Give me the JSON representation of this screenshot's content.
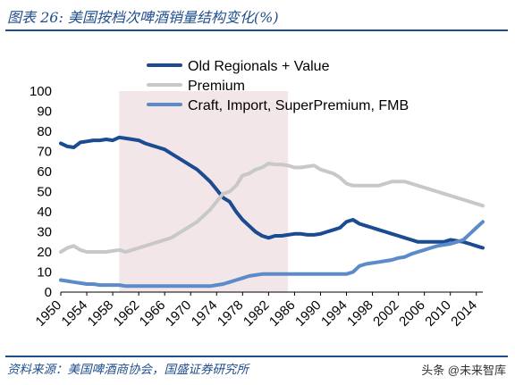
{
  "header": {
    "title": "图表 26: 美国按档次啤酒销量结构变化(%)"
  },
  "footer": {
    "source": "资料来源：美国啤酒商协会，国盛证券研究所",
    "watermark": "头条 @未来智库"
  },
  "chart_data": {
    "type": "line",
    "title": "图表 26: 美国按档次啤酒销量结构变化(%)",
    "xlabel": "",
    "ylabel": "",
    "ylim": [
      0,
      100
    ],
    "xlim": [
      1950,
      2015
    ],
    "grid": false,
    "legend_position": "top-center",
    "yticks": [
      0,
      10,
      20,
      30,
      40,
      50,
      60,
      70,
      80,
      90,
      100
    ],
    "xticks": [
      1950,
      1954,
      1958,
      1962,
      1966,
      1970,
      1974,
      1978,
      1982,
      1986,
      1990,
      1994,
      1998,
      2002,
      2006,
      2010,
      2014
    ],
    "shaded_region": {
      "from": 1959,
      "to": 1985,
      "color": "#f2e6e8"
    },
    "x": [
      1950,
      1951,
      1952,
      1953,
      1954,
      1955,
      1956,
      1957,
      1958,
      1959,
      1960,
      1961,
      1962,
      1963,
      1964,
      1965,
      1966,
      1967,
      1968,
      1969,
      1970,
      1971,
      1972,
      1973,
      1974,
      1975,
      1976,
      1977,
      1978,
      1979,
      1980,
      1981,
      1982,
      1983,
      1984,
      1985,
      1986,
      1987,
      1988,
      1989,
      1990,
      1991,
      1992,
      1993,
      1994,
      1995,
      1996,
      1997,
      1998,
      1999,
      2000,
      2001,
      2002,
      2003,
      2004,
      2005,
      2006,
      2007,
      2008,
      2009,
      2010,
      2011,
      2012,
      2013,
      2014,
      2015
    ],
    "series": [
      {
        "name": "Old Regionals + Value",
        "color": "#1b4b91",
        "values": [
          74,
          72.5,
          72,
          74.5,
          75,
          75.5,
          75.5,
          76,
          75.5,
          77,
          76.5,
          76,
          75.5,
          74,
          73,
          72,
          71,
          69,
          67,
          65,
          63,
          61,
          58,
          55,
          51,
          47,
          45,
          40,
          36,
          33,
          30,
          28,
          27,
          28,
          28,
          28.5,
          29,
          29,
          28.5,
          28.5,
          29,
          30,
          31,
          32,
          35,
          36,
          34,
          33,
          32,
          31,
          30,
          29,
          28,
          27,
          26,
          25,
          25,
          25,
          25,
          25,
          26,
          25.5,
          25,
          24,
          23,
          22
        ]
      },
      {
        "name": "Premium",
        "color": "#c8c8c8",
        "values": [
          20,
          22,
          23,
          21,
          20,
          20,
          20,
          20,
          20.5,
          21,
          20,
          21,
          22,
          23,
          24,
          25,
          26,
          27,
          29,
          31,
          33,
          35,
          38,
          41,
          45,
          49,
          50,
          53,
          58,
          59,
          61,
          62,
          64,
          63.5,
          63.5,
          63,
          62,
          62,
          62.5,
          63,
          61,
          60,
          59,
          57,
          54,
          53,
          53,
          53,
          53,
          53,
          54,
          55,
          55,
          55,
          54,
          53,
          52,
          51,
          50,
          49,
          48,
          47,
          46,
          45,
          44,
          43
        ]
      },
      {
        "name": "Craft, Import, SuperPremium, FMB",
        "color": "#5b8bc9",
        "values": [
          6,
          5.5,
          5,
          4.5,
          4,
          4,
          3.5,
          3.5,
          3.5,
          3.5,
          3,
          3,
          3,
          3,
          3,
          3,
          3,
          3,
          3,
          3,
          3,
          3,
          3,
          3,
          3.5,
          4,
          5,
          6,
          7,
          8,
          8.5,
          9,
          9,
          9,
          9,
          9,
          9,
          9,
          9,
          9,
          9,
          9,
          9,
          9,
          9,
          10,
          13,
          14,
          14.5,
          15,
          15.5,
          16,
          17,
          17.5,
          19,
          20,
          21,
          22,
          23,
          23.5,
          24,
          25,
          26,
          29,
          32,
          35
        ]
      }
    ]
  }
}
